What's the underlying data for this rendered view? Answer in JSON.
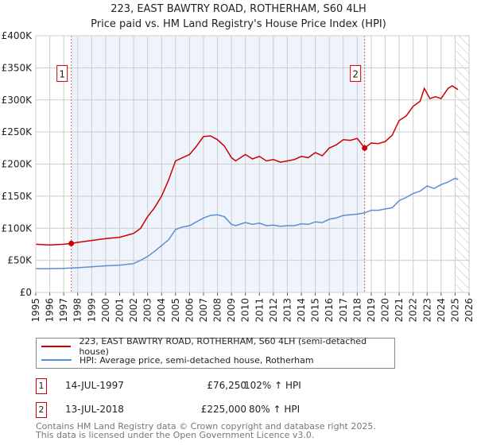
{
  "chart_data": {
    "type": "line",
    "title": "223, EAST BAWTRY ROAD, ROTHERHAM, S60 4LH",
    "subtitle": "Price paid vs. HM Land Registry's House Price Index (HPI)",
    "xlim": [
      1995,
      2026
    ],
    "ylim": [
      0,
      400000
    ],
    "x_ticks": [
      "1995",
      "1996",
      "1997",
      "1998",
      "1999",
      "2000",
      "2001",
      "2002",
      "2003",
      "2004",
      "2005",
      "2006",
      "2007",
      "2008",
      "2009",
      "2010",
      "2011",
      "2012",
      "2013",
      "2014",
      "2015",
      "2016",
      "2017",
      "2018",
      "2019",
      "2020",
      "2021",
      "2022",
      "2023",
      "2024",
      "2025",
      "2026"
    ],
    "y_ticks": [
      {
        "v": 0,
        "label": "£0"
      },
      {
        "v": 50000,
        "label": "£50K"
      },
      {
        "v": 100000,
        "label": "£100K"
      },
      {
        "v": 150000,
        "label": "£150K"
      },
      {
        "v": 200000,
        "label": "£200K"
      },
      {
        "v": 250000,
        "label": "£250K"
      },
      {
        "v": 300000,
        "label": "£300K"
      },
      {
        "v": 350000,
        "label": "£350K"
      },
      {
        "v": 400000,
        "label": "£400K"
      }
    ],
    "grid": true,
    "shaded_range": [
      1997.54,
      2018.53
    ],
    "hatched_from": 2025.0,
    "series": [
      {
        "name": "223, EAST BAWTRY ROAD, ROTHERHAM, S60 4LH (semi-detached house)",
        "color": "#cc0000",
        "x": [
          1995,
          1996,
          1997,
          1997.54,
          1998,
          1999,
          2000,
          2001,
          2002,
          2002.5,
          2003,
          2003.5,
          2004,
          2004.5,
          2005,
          2005.5,
          2006,
          2006.5,
          2007,
          2007.5,
          2008,
          2008.5,
          2009,
          2009.3,
          2010,
          2010.5,
          2011,
          2011.5,
          2012,
          2012.5,
          2013,
          2013.5,
          2014,
          2014.5,
          2015,
          2015.5,
          2016,
          2016.5,
          2017,
          2017.5,
          2018,
          2018.53,
          2019,
          2019.5,
          2020,
          2020.5,
          2021,
          2021.5,
          2022,
          2022.5,
          2022.8,
          2023.2,
          2023.6,
          2024,
          2024.5,
          2024.8,
          2025.2
        ],
        "y": [
          75000,
          74000,
          75000,
          76250,
          78000,
          81000,
          84000,
          86000,
          92000,
          100000,
          118000,
          132000,
          150000,
          175000,
          205000,
          210000,
          215000,
          228000,
          243000,
          244000,
          238000,
          228000,
          210000,
          205000,
          215000,
          208000,
          212000,
          205000,
          207000,
          203000,
          205000,
          207000,
          212000,
          210000,
          218000,
          213000,
          225000,
          230000,
          238000,
          237000,
          240000,
          225000,
          233000,
          232000,
          235000,
          245000,
          268000,
          275000,
          290000,
          298000,
          318000,
          302000,
          305000,
          302000,
          318000,
          322000,
          316000
        ]
      },
      {
        "name": "HPI: Average price, semi-detached house, Rotherham",
        "color": "#5b8fd4",
        "x": [
          1995,
          1996,
          1997,
          1997.54,
          1998,
          1999,
          2000,
          2001,
          2002,
          2002.5,
          2003,
          2003.5,
          2004,
          2004.5,
          2005,
          2005.5,
          2006,
          2006.5,
          2007,
          2007.5,
          2008,
          2008.5,
          2009,
          2009.3,
          2010,
          2010.5,
          2011,
          2011.5,
          2012,
          2012.5,
          2013,
          2013.5,
          2014,
          2014.5,
          2015,
          2015.5,
          2016,
          2016.5,
          2017,
          2017.5,
          2018,
          2018.53,
          2019,
          2019.5,
          2020,
          2020.5,
          2021,
          2021.5,
          2022,
          2022.5,
          2023,
          2023.5,
          2024,
          2024.5,
          2025,
          2025.2
        ],
        "y": [
          37000,
          37000,
          37500,
          38000,
          38500,
          40000,
          41500,
          42500,
          45000,
          50000,
          56000,
          64000,
          73000,
          82000,
          98000,
          102000,
          104000,
          110000,
          116000,
          120000,
          121000,
          118000,
          106000,
          104000,
          109000,
          106000,
          108000,
          104000,
          105000,
          103000,
          104000,
          104000,
          107000,
          106000,
          110000,
          109000,
          114000,
          116000,
          120000,
          121000,
          122000,
          124000,
          128000,
          128000,
          130000,
          132000,
          143000,
          148000,
          154000,
          158000,
          166000,
          162000,
          168000,
          172000,
          178000,
          176000
        ]
      }
    ],
    "markers": [
      {
        "label": "1",
        "x": 1997.54,
        "y": 76250
      },
      {
        "label": "2",
        "x": 2018.53,
        "y": 225000
      }
    ]
  },
  "legend": {
    "red": "223, EAST BAWTRY ROAD, ROTHERHAM, S60 4LH (semi-detached house)",
    "blue": "HPI: Average price, semi-detached house, Rotherham"
  },
  "annotations": [
    {
      "num": "1",
      "date": "14-JUL-1997",
      "price": "£76,250",
      "hpi": "102% ↑ HPI"
    },
    {
      "num": "2",
      "date": "13-JUL-2018",
      "price": "£225,000",
      "hpi": "80% ↑ HPI"
    }
  ],
  "footer": {
    "line1": "Contains HM Land Registry data © Crown copyright and database right 2025.",
    "line2": "This data is licensed under the Open Government Licence v3.0."
  }
}
